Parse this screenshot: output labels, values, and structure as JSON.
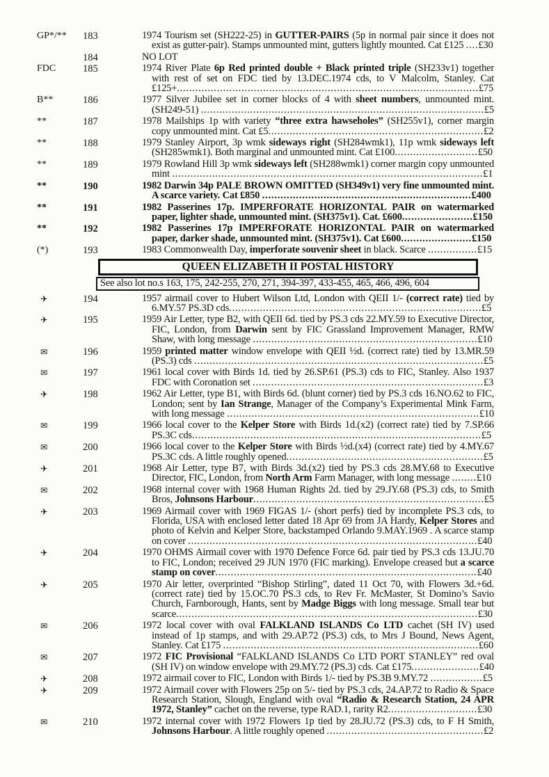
{
  "colors": {
    "paper": "#fcfcfa",
    "ink": "#141414",
    "box_border": "#111111"
  },
  "icons": {
    "airmail": "✈",
    "envelope": "✉"
  },
  "catalog": {
    "items": [
      {
        "type": "lot",
        "symbol": "GP*/**",
        "symbol_icon": null,
        "lot": "183",
        "bold": false,
        "price": "£30",
        "segments": [
          {
            "t": "1974 Tourism set (SH222-25) in ",
            "b": false
          },
          {
            "t": "GUTTER-PAIRS",
            "b": true
          },
          {
            "t": " (5p in normal pair since it does not exist as gutter-pair). Stamps unmounted mint, gutters lightly mounted. Cat £125 ",
            "b": false
          }
        ]
      },
      {
        "type": "lot",
        "symbol": "",
        "symbol_icon": null,
        "lot": "184",
        "bold": false,
        "price": null,
        "segments": [
          {
            "t": "NO LOT",
            "b": false
          }
        ]
      },
      {
        "type": "lot",
        "symbol": "FDC",
        "symbol_icon": null,
        "lot": "185",
        "bold": false,
        "price": "£75",
        "segments": [
          {
            "t": "1974 River Plate ",
            "b": false
          },
          {
            "t": "6p Red printed double + Black printed triple",
            "b": true
          },
          {
            "t": " (SH233v1) together with rest of set on FDC tied by 13.DEC.1974 cds, to V Malcolm, Stanley. Cat £125+",
            "b": false
          }
        ]
      },
      {
        "type": "lot",
        "symbol": "B**",
        "symbol_icon": null,
        "lot": "186",
        "bold": false,
        "price": "£5",
        "segments": [
          {
            "t": "1977 Silver Jubilee set in corner blocks of 4 with ",
            "b": false
          },
          {
            "t": "sheet numbers",
            "b": true
          },
          {
            "t": ", unmounted mint. (SH249-51) ",
            "b": false
          }
        ]
      },
      {
        "type": "lot",
        "symbol": "**",
        "symbol_icon": null,
        "lot": "187",
        "bold": false,
        "price": "£2",
        "segments": [
          {
            "t": "1978 Mailships 1p with variety ",
            "b": false
          },
          {
            "t": "“three extra hawseholes”",
            "b": true
          },
          {
            "t": " (SH255v1), corner margin copy unmounted mint. Cat £5",
            "b": false
          }
        ]
      },
      {
        "type": "lot",
        "symbol": "**",
        "symbol_icon": null,
        "lot": "188",
        "bold": false,
        "price": "£50",
        "segments": [
          {
            "t": "1979 Stanley Airport, 3p wmk ",
            "b": false
          },
          {
            "t": "sideways right",
            "b": true
          },
          {
            "t": " (SH284wmk1), 11p wmk ",
            "b": false
          },
          {
            "t": "sideways left",
            "b": true
          },
          {
            "t": " (SH285wmk1). Both marginal and unmounted mint. Cat £100",
            "b": false
          }
        ]
      },
      {
        "type": "lot",
        "symbol": "**",
        "symbol_icon": null,
        "lot": "189",
        "bold": false,
        "price": "£1",
        "segments": [
          {
            "t": "1979 Rowland Hill 3p wmk ",
            "b": false
          },
          {
            "t": "sideways left",
            "b": true
          },
          {
            "t": " (SH288wmk1) corner margin copy unmounted mint ",
            "b": false
          }
        ]
      },
      {
        "type": "lot",
        "symbol": "**",
        "symbol_icon": null,
        "lot": "190",
        "bold": true,
        "price": "£400",
        "segments": [
          {
            "t": "1982 Darwin 34p PALE BROWN OMITTED (SH349v1) very fine unmounted mint. A scarce variety. Cat £850 ",
            "b": true
          }
        ]
      },
      {
        "type": "lot",
        "symbol": "**",
        "symbol_icon": null,
        "lot": "191",
        "bold": true,
        "price": "£150",
        "segments": [
          {
            "t": "1982 Passerines 17p. IMPERFORATE HORIZONTAL PAIR on watermarked paper, lighter shade, unmounted mint. (SH375v1). Cat. £600",
            "b": true
          }
        ]
      },
      {
        "type": "lot",
        "symbol": "**",
        "symbol_icon": null,
        "lot": "192",
        "bold": true,
        "price": "£150",
        "segments": [
          {
            "t": "1982 Passerines 17p IMPERFORATE HORIZONTAL PAIR on watermarked paper, darker shade, unmounted mint. (SH375v1). Cat £600",
            "b": true
          }
        ]
      },
      {
        "type": "lot",
        "symbol": "(*)",
        "symbol_icon": null,
        "lot": "193",
        "bold": false,
        "price": "£15",
        "segments": [
          {
            "t": "1983 Commonwealth Day, ",
            "b": false
          },
          {
            "t": "imperforate souvenir sheet",
            "b": true
          },
          {
            "t": " in black. Scarce ",
            "b": false
          }
        ]
      },
      {
        "type": "section_header",
        "title": "QUEEN ELIZABETH II POSTAL HISTORY"
      },
      {
        "type": "note",
        "text": "See also lot no.s 163, 175, 242-255, 270, 271, 394-397, 433-455, 465, 466, 496, 604"
      },
      {
        "type": "lot",
        "symbol": null,
        "symbol_icon": "airmail",
        "lot": "194",
        "bold": false,
        "price": "£5",
        "segments": [
          {
            "t": "1957 airmail cover to Hubert Wilson Ltd, London with QEII 1/- ",
            "b": false
          },
          {
            "t": "(correct rate)",
            "b": true
          },
          {
            "t": " tied by 6.MY.57 PS.3D cds",
            "b": false
          }
        ]
      },
      {
        "type": "lot",
        "symbol": null,
        "symbol_icon": "airmail",
        "lot": "195",
        "bold": false,
        "price": "£10",
        "segments": [
          {
            "t": "1959 Air Letter, type B2, with QEII 6d. tied by PS.3 cds 22.MY.59 to Executive Director, FIC, London, from ",
            "b": false
          },
          {
            "t": "Darwin",
            "b": true
          },
          {
            "t": " sent by FIC Grassland Improvement Manager, RMW Shaw, with long message ",
            "b": false
          }
        ]
      },
      {
        "type": "lot",
        "symbol": null,
        "symbol_icon": "envelope",
        "lot": "196",
        "bold": false,
        "price": "£5",
        "segments": [
          {
            "t": "1959 ",
            "b": false
          },
          {
            "t": "printed matter",
            "b": true
          },
          {
            "t": " window envelope with QEII ½d. (correct rate) tied by 13.MR.59 (PS.3) cds ",
            "b": false
          }
        ]
      },
      {
        "type": "lot",
        "symbol": null,
        "symbol_icon": "envelope",
        "lot": "197",
        "bold": false,
        "price": "£3",
        "segments": [
          {
            "t": "1961 local cover with Birds 1d. tied by 26.SP.61 (PS.3) cds to FIC, Stanley. Also 1937 FDC with Coronation set ",
            "b": false
          }
        ]
      },
      {
        "type": "lot",
        "symbol": null,
        "symbol_icon": "airmail",
        "lot": "198",
        "bold": false,
        "price": "£10",
        "segments": [
          {
            "t": "1962 Air Letter, type B1, with Birds 6d. (blunt corner) tied by PS.3 cds 16.NO.62 to FIC, London; sent by ",
            "b": false
          },
          {
            "t": "Ian Strange",
            "b": true
          },
          {
            "t": ", Manager of the Company’s Experimental Mink Farm, with long message ",
            "b": false
          }
        ]
      },
      {
        "type": "lot",
        "symbol": null,
        "symbol_icon": "envelope",
        "lot": "199",
        "bold": false,
        "price": "£5",
        "segments": [
          {
            "t": "1966 local cover to the ",
            "b": false
          },
          {
            "t": "Kelper Store",
            "b": true
          },
          {
            "t": " with Birds 1d.(x2) (correct rate) tied by 7.SP.66 PS.3C cds",
            "b": false
          }
        ]
      },
      {
        "type": "lot",
        "symbol": null,
        "symbol_icon": "envelope",
        "lot": "200",
        "bold": false,
        "price": "£5",
        "segments": [
          {
            "t": "1966 local cover to the ",
            "b": false
          },
          {
            "t": "Kelper Store",
            "b": true
          },
          {
            "t": " with Birds ½d.(x4) (correct rate) tied by 4.MY.67 PS.3C cds. A little roughly opened",
            "b": false
          }
        ]
      },
      {
        "type": "lot",
        "symbol": null,
        "symbol_icon": "airmail",
        "lot": "201",
        "bold": false,
        "price": "£10",
        "segments": [
          {
            "t": "1968 Air Letter, type B7, with Birds 3d.(x2) tied by PS.3 cds 28.MY.68 to Executive Director, FIC, London, from ",
            "b": false
          },
          {
            "t": "North Arm",
            "b": true
          },
          {
            "t": " Farm Manager, with long message ",
            "b": false
          }
        ]
      },
      {
        "type": "lot",
        "symbol": null,
        "symbol_icon": "envelope",
        "lot": "202",
        "bold": false,
        "price": "£5",
        "segments": [
          {
            "t": "1968 internal cover with 1968 Human Rights 2d. tied by 29.JY.68 (PS.3) cds, to Smith Bros, ",
            "b": false
          },
          {
            "t": "Johnsons Harbour",
            "b": true
          }
        ]
      },
      {
        "type": "lot",
        "symbol": null,
        "symbol_icon": "airmail",
        "lot": "203",
        "bold": false,
        "price": "£40",
        "segments": [
          {
            "t": "1969 Airmail cover with 1969 FIGAS 1/- (short perfs) tied by incomplete PS.3 cds, to Florida, USA with enclosed letter dated 18 Apr 69 from JA Hardy, ",
            "b": false
          },
          {
            "t": "Kelper Stores",
            "b": true
          },
          {
            "t": " and photo of Kelvin and Kelper Store, backstamped Orlando 9.MAY.1969 . A scarce stamp on cover ",
            "b": false
          }
        ]
      },
      {
        "type": "lot",
        "symbol": null,
        "symbol_icon": "airmail",
        "lot": "204",
        "bold": false,
        "price": "£40",
        "segments": [
          {
            "t": "1970 OHMS Airmail cover with 1970 Defence Force 6d. pair tied by PS.3 cds 13.JU.70 to FIC, London; received 29 JUN 1970 (FIC marking). Envelope creased but ",
            "b": false
          },
          {
            "t": "a scarce stamp on cover",
            "b": true
          }
        ]
      },
      {
        "type": "lot",
        "symbol": null,
        "symbol_icon": "airmail",
        "lot": "205",
        "bold": false,
        "price": "£30",
        "segments": [
          {
            "t": "1970 Air letter, overprinted “Bishop Stirling”, dated 11 Oct 70, with Flowers 3d.+6d. (correct rate) tied by 15.OC.70 PS.3 cds, to Rev Fr. McMaster, St Domino’s Savio Church, Farnborough, Hants, sent by ",
            "b": false
          },
          {
            "t": "Madge Biggs",
            "b": true
          },
          {
            "t": " with long message. Small tear but scarce",
            "b": false
          }
        ]
      },
      {
        "type": "lot",
        "symbol": null,
        "symbol_icon": "envelope",
        "lot": "206",
        "bold": false,
        "price": "£60",
        "segments": [
          {
            "t": "1972 local cover with oval ",
            "b": false
          },
          {
            "t": "FALKLAND ISLANDS Co LTD",
            "b": true
          },
          {
            "t": " cachet (SH IV) used instead of 1p stamps, and with 29.AP.72 (PS.3) cds, to Mrs J Bound, News Agent, Stanley. Cat £175 ",
            "b": false
          }
        ]
      },
      {
        "type": "lot",
        "symbol": null,
        "symbol_icon": "envelope",
        "lot": "207",
        "bold": false,
        "price": "£40",
        "segments": [
          {
            "t": "1972 ",
            "b": false
          },
          {
            "t": "FIC Provisional",
            "b": true
          },
          {
            "t": " “FALKLAND ISLANDS Co LTD PORT STANLEY” red oval (SH IV) on window envelope with 29.MY.72 (PS.3) cds. Cat £175",
            "b": false
          }
        ]
      },
      {
        "type": "lot",
        "symbol": null,
        "symbol_icon": "airmail",
        "lot": "208",
        "bold": false,
        "price": "£5",
        "segments": [
          {
            "t": "1972 airmail cover to FIC, London with Birds 1/- tied by PS.3B 9.MY.72 ",
            "b": false
          }
        ]
      },
      {
        "type": "lot",
        "symbol": null,
        "symbol_icon": "airmail",
        "lot": "209",
        "bold": false,
        "price": "£30",
        "segments": [
          {
            "t": "1972 Airmail cover with Flowers 25p on 5/- tied by PS.3 cds, 24.AP.72 to Radio & Space Research Station, Slough, England with oval ",
            "b": false
          },
          {
            "t": "“Radio & Research Station, 24 APR 1972, Stanley”",
            "b": true
          },
          {
            "t": " cachet on the reverse, type RAD.1, rarity R2",
            "b": false
          }
        ]
      },
      {
        "type": "lot",
        "symbol": null,
        "symbol_icon": "envelope",
        "lot": "210",
        "bold": false,
        "price": "£2",
        "segments": [
          {
            "t": "1972 internal cover with 1972 Flowers 1p tied by 28.JU.72 (PS.3) cds, to F H Smith, ",
            "b": false
          },
          {
            "t": "Johnsons Harbour",
            "b": true
          },
          {
            "t": ". A little roughly opened ",
            "b": false
          }
        ]
      }
    ]
  }
}
